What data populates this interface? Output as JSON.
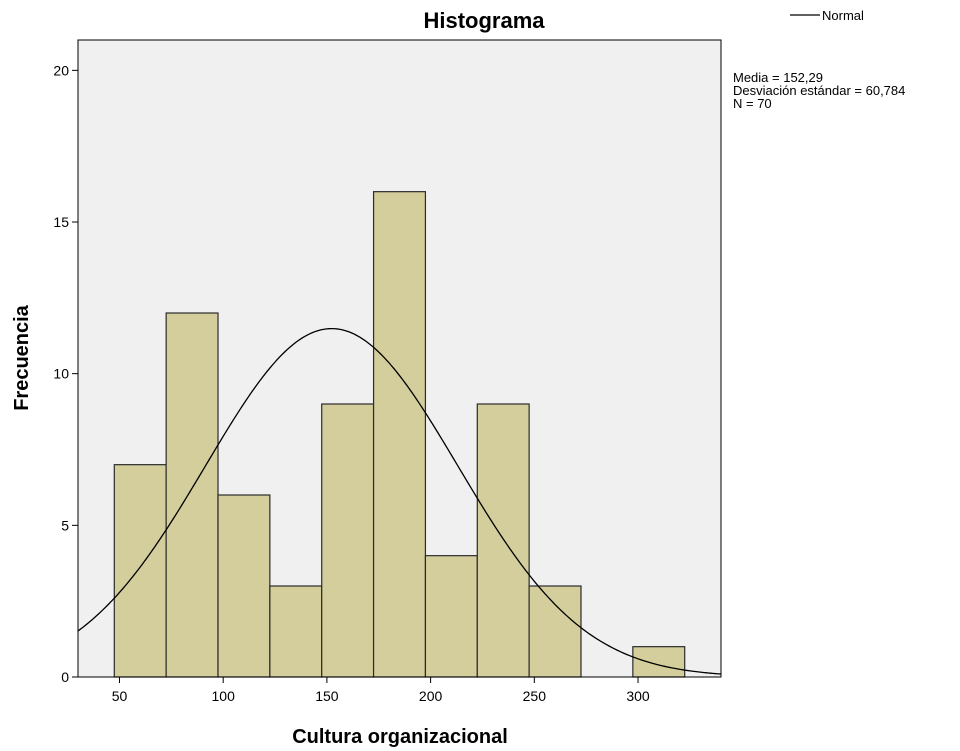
{
  "chart_data": {
    "type": "bar",
    "title": "Histograma",
    "xlabel": "Cultura organizacional",
    "ylabel": "Frecuencia",
    "xlim": [
      30,
      340
    ],
    "ylim": [
      0,
      21
    ],
    "x_ticks": [
      50,
      100,
      150,
      200,
      250,
      300
    ],
    "y_ticks": [
      0,
      5,
      10,
      15,
      20
    ],
    "bin_width": 25,
    "bins": [
      {
        "start": 47.5,
        "end": 72.5,
        "count": 7
      },
      {
        "start": 72.5,
        "end": 97.5,
        "count": 12
      },
      {
        "start": 97.5,
        "end": 122.5,
        "count": 6
      },
      {
        "start": 122.5,
        "end": 147.5,
        "count": 3
      },
      {
        "start": 147.5,
        "end": 172.5,
        "count": 9
      },
      {
        "start": 172.5,
        "end": 197.5,
        "count": 16
      },
      {
        "start": 197.5,
        "end": 222.5,
        "count": 4
      },
      {
        "start": 222.5,
        "end": 247.5,
        "count": 9
      },
      {
        "start": 247.5,
        "end": 272.5,
        "count": 3
      },
      {
        "start": 272.5,
        "end": 297.5,
        "count": 0
      },
      {
        "start": 297.5,
        "end": 322.5,
        "count": 1
      }
    ],
    "normal_curve": {
      "mean": 152.29,
      "sd": 60.784,
      "n": 70
    },
    "legend": {
      "position": "top-right",
      "entries": [
        "Normal"
      ]
    },
    "stats": [
      "Media = 152,29",
      "Desviación estándar = 60,784",
      "N = 70"
    ],
    "grid": false,
    "colors": {
      "bar_fill": "#d3ce9c",
      "bar_stroke": "#2b2b2b",
      "plot_bg": "#f0f0f0",
      "curve": "#000000"
    }
  }
}
